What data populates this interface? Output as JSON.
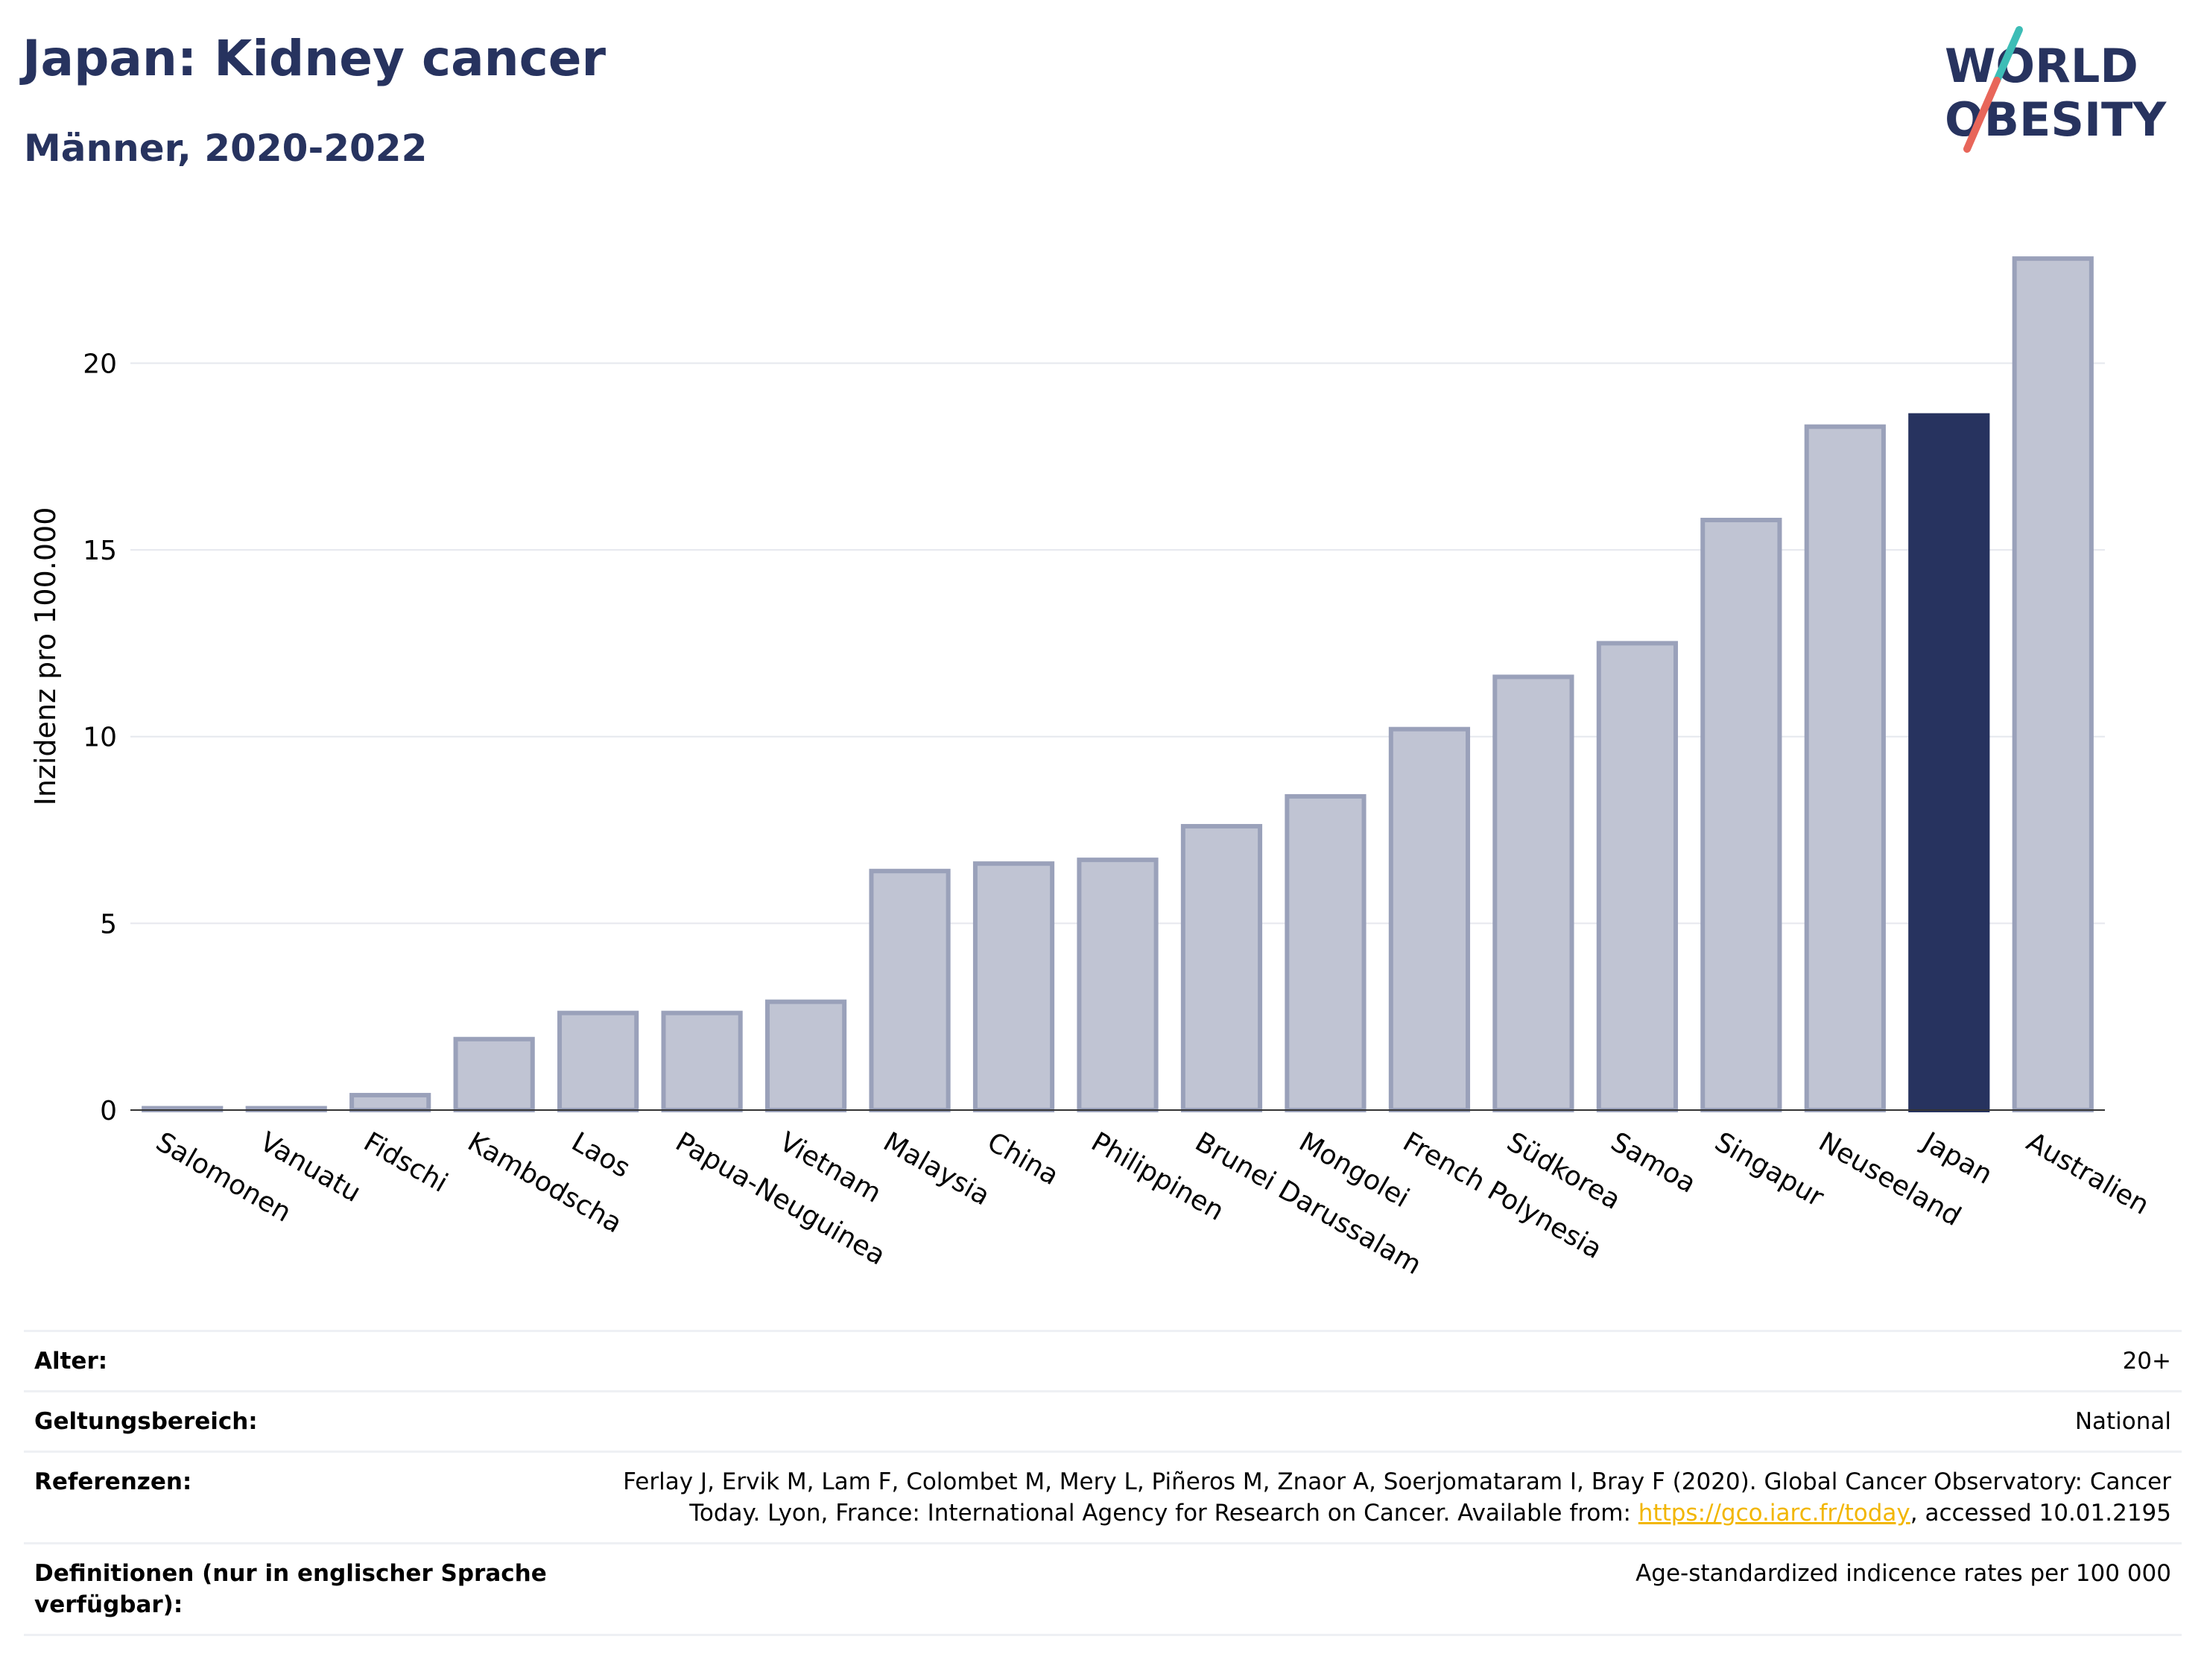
{
  "header": {
    "title": "Japan: Kidney cancer",
    "subtitle": "Männer, 2020-2022"
  },
  "logo": {
    "line1": "WORLD",
    "line2": "OBESITY"
  },
  "colors": {
    "highlight": "#27335f",
    "bar": "#c0c4d3",
    "bar_border": "#9aa1ba",
    "link": "#f2b600"
  },
  "chart_data": {
    "type": "bar",
    "title": "Japan: Kidney cancer",
    "subtitle": "Männer, 2020-2022",
    "ylabel": "Inzidenz pro 100.000",
    "xlabel": "",
    "ylim": [
      0,
      23.5
    ],
    "yticks": [
      0,
      5,
      10,
      15,
      20
    ],
    "grid": true,
    "highlight": "Japan",
    "categories": [
      "Salomonen",
      "Vanuatu",
      "Fidschi",
      "Kambodscha",
      "Laos",
      "Papua-Neuguinea",
      "Vietnam",
      "Malaysia",
      "China",
      "Philippinen",
      "Brunei Darussalam",
      "Mongolei",
      "French Polynesia",
      "Südkorea",
      "Samoa",
      "Singapur",
      "Neuseeland",
      "Japan",
      "Australien"
    ],
    "values": [
      0.05,
      0.05,
      0.4,
      1.9,
      2.6,
      2.6,
      2.9,
      6.4,
      6.6,
      6.7,
      7.6,
      8.4,
      10.2,
      11.6,
      12.5,
      15.8,
      18.3,
      18.6,
      22.8
    ]
  },
  "meta": {
    "age_label": "Alter:",
    "age_value": "20+",
    "scope_label": "Geltungsbereich:",
    "scope_value": "National",
    "refs_label": "Referenzen:",
    "refs_text_1": "Ferlay J, Ervik M, Lam F, Colombet M, Mery L, Piñeros M, Znaor A, Soerjomataram I, Bray F (2020). Global Cancer Observatory: Cancer Today. Lyon, France: International Agency for Research on Cancer. Available from: ",
    "refs_link": "https://gco.iarc.fr/today",
    "refs_text_2": ", accessed 10.01.2195",
    "def_label": "Definitionen (nur in englischer Sprache verfügbar):",
    "def_value": "Age-standardized indicence rates per 100 000"
  }
}
